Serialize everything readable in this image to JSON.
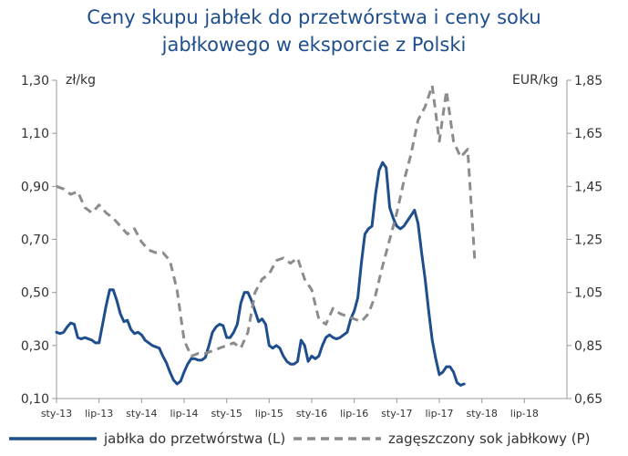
{
  "chart_data": {
    "type": "line",
    "title_lines": [
      "Ceny skupu jabłek do przetwórstwa i ceny soku",
      "jabłkowego w eksporcie z Polski"
    ],
    "left_axis_unit": "zł/kg",
    "right_axis_unit": "EUR/kg",
    "left_ylim": [
      0.1,
      1.3
    ],
    "right_ylim": [
      0.65,
      1.85
    ],
    "left_ticks": [
      "0,10",
      "0,30",
      "0,50",
      "0,70",
      "0,90",
      "1,10",
      "1,30"
    ],
    "right_ticks": [
      "0,65",
      "0,85",
      "1,05",
      "1,25",
      "1,45",
      "1,65",
      "1,85"
    ],
    "xlim": [
      0,
      72
    ],
    "x_ticks": [
      {
        "x": 0,
        "label": "sty-13"
      },
      {
        "x": 6,
        "label": "lip-13"
      },
      {
        "x": 12,
        "label": "sty-14"
      },
      {
        "x": 18,
        "label": "lip-14"
      },
      {
        "x": 24,
        "label": "sty-15"
      },
      {
        "x": 30,
        "label": "lip-15"
      },
      {
        "x": 36,
        "label": "sty-16"
      },
      {
        "x": 42,
        "label": "lip-16"
      },
      {
        "x": 48,
        "label": "sty-17"
      },
      {
        "x": 54,
        "label": "lip-17"
      },
      {
        "x": 60,
        "label": "sty-18"
      },
      {
        "x": 66,
        "label": "lip-18"
      }
    ],
    "grid": false,
    "legend_position": "bottom",
    "series": [
      {
        "name": "jabłka do przetwórstwa (L)",
        "axis": "left",
        "color": "#1f4e8c",
        "style": "solid",
        "points": [
          [
            0,
            0.35
          ],
          [
            0.5,
            0.345
          ],
          [
            1,
            0.35
          ],
          [
            1.5,
            0.37
          ],
          [
            2,
            0.385
          ],
          [
            2.5,
            0.38
          ],
          [
            3,
            0.33
          ],
          [
            3.5,
            0.325
          ],
          [
            4,
            0.33
          ],
          [
            4.5,
            0.325
          ],
          [
            5,
            0.32
          ],
          [
            5.5,
            0.31
          ],
          [
            6,
            0.31
          ],
          [
            6.5,
            0.38
          ],
          [
            7,
            0.45
          ],
          [
            7.5,
            0.51
          ],
          [
            8,
            0.51
          ],
          [
            8.5,
            0.47
          ],
          [
            9,
            0.42
          ],
          [
            9.5,
            0.39
          ],
          [
            10,
            0.395
          ],
          [
            10.5,
            0.36
          ],
          [
            11,
            0.345
          ],
          [
            11.5,
            0.35
          ],
          [
            12,
            0.34
          ],
          [
            12.5,
            0.32
          ],
          [
            13,
            0.31
          ],
          [
            13.5,
            0.3
          ],
          [
            14,
            0.295
          ],
          [
            14.5,
            0.29
          ],
          [
            15,
            0.26
          ],
          [
            15.5,
            0.235
          ],
          [
            16,
            0.2
          ],
          [
            16.5,
            0.17
          ],
          [
            17,
            0.155
          ],
          [
            17.5,
            0.165
          ],
          [
            18,
            0.2
          ],
          [
            18.5,
            0.23
          ],
          [
            19,
            0.25
          ],
          [
            19.5,
            0.25
          ],
          [
            20,
            0.245
          ],
          [
            20.5,
            0.245
          ],
          [
            21,
            0.255
          ],
          [
            21.5,
            0.3
          ],
          [
            22,
            0.35
          ],
          [
            22.5,
            0.37
          ],
          [
            23,
            0.38
          ],
          [
            23.5,
            0.375
          ],
          [
            24,
            0.33
          ],
          [
            24.5,
            0.33
          ],
          [
            25,
            0.35
          ],
          [
            25.5,
            0.38
          ],
          [
            26,
            0.46
          ],
          [
            26.5,
            0.5
          ],
          [
            27,
            0.5
          ],
          [
            27.5,
            0.47
          ],
          [
            28,
            0.43
          ],
          [
            28.5,
            0.39
          ],
          [
            29,
            0.4
          ],
          [
            29.5,
            0.38
          ],
          [
            30,
            0.3
          ],
          [
            30.5,
            0.29
          ],
          [
            31,
            0.3
          ],
          [
            31.5,
            0.29
          ],
          [
            32,
            0.26
          ],
          [
            32.5,
            0.24
          ],
          [
            33,
            0.23
          ],
          [
            33.5,
            0.23
          ],
          [
            34,
            0.24
          ],
          [
            34.5,
            0.32
          ],
          [
            35,
            0.3
          ],
          [
            35.5,
            0.24
          ],
          [
            36,
            0.26
          ],
          [
            36.5,
            0.25
          ],
          [
            37,
            0.26
          ],
          [
            37.5,
            0.3
          ],
          [
            38,
            0.33
          ],
          [
            38.5,
            0.34
          ],
          [
            39,
            0.33
          ],
          [
            39.5,
            0.325
          ],
          [
            40,
            0.33
          ],
          [
            40.5,
            0.34
          ],
          [
            41,
            0.35
          ],
          [
            41.5,
            0.4
          ],
          [
            42,
            0.43
          ],
          [
            42.5,
            0.48
          ],
          [
            43,
            0.61
          ],
          [
            43.5,
            0.72
          ],
          [
            44,
            0.74
          ],
          [
            44.5,
            0.75
          ],
          [
            45,
            0.87
          ],
          [
            45.5,
            0.96
          ],
          [
            46,
            0.99
          ],
          [
            46.5,
            0.97
          ],
          [
            47,
            0.82
          ],
          [
            47.5,
            0.78
          ],
          [
            48,
            0.75
          ],
          [
            48.5,
            0.74
          ],
          [
            49,
            0.75
          ],
          [
            49.5,
            0.77
          ],
          [
            50,
            0.79
          ],
          [
            50.5,
            0.81
          ],
          [
            51,
            0.76
          ],
          [
            51.5,
            0.65
          ],
          [
            52,
            0.55
          ],
          [
            52.5,
            0.43
          ],
          [
            53,
            0.32
          ],
          [
            53.5,
            0.25
          ],
          [
            54,
            0.19
          ],
          [
            54.5,
            0.2
          ],
          [
            55,
            0.22
          ],
          [
            55.5,
            0.22
          ],
          [
            56,
            0.2
          ],
          [
            56.5,
            0.16
          ],
          [
            57,
            0.15
          ],
          [
            57.5,
            0.155
          ]
        ]
      },
      {
        "name": "zagęszczony sok jabłkowy (P)",
        "axis": "right",
        "color": "#8c8c8c",
        "style": "dashed",
        "points": [
          [
            0,
            1.45
          ],
          [
            1,
            1.44
          ],
          [
            2,
            1.42
          ],
          [
            3,
            1.43
          ],
          [
            4,
            1.37
          ],
          [
            5,
            1.35
          ],
          [
            6,
            1.38
          ],
          [
            7,
            1.35
          ],
          [
            8,
            1.33
          ],
          [
            9,
            1.3
          ],
          [
            10,
            1.27
          ],
          [
            11,
            1.29
          ],
          [
            12,
            1.24
          ],
          [
            13,
            1.21
          ],
          [
            14,
            1.2
          ],
          [
            15,
            1.2
          ],
          [
            16,
            1.17
          ],
          [
            17,
            1.06
          ],
          [
            18,
            0.87
          ],
          [
            19,
            0.81
          ],
          [
            20,
            0.82
          ],
          [
            21,
            0.82
          ],
          [
            22,
            0.83
          ],
          [
            23,
            0.84
          ],
          [
            24,
            0.85
          ],
          [
            25,
            0.86
          ],
          [
            26,
            0.84
          ],
          [
            27,
            0.9
          ],
          [
            28,
            1.05
          ],
          [
            29,
            1.1
          ],
          [
            30,
            1.12
          ],
          [
            31,
            1.17
          ],
          [
            32,
            1.18
          ],
          [
            33,
            1.16
          ],
          [
            34,
            1.18
          ],
          [
            35,
            1.1
          ],
          [
            36,
            1.06
          ],
          [
            37,
            0.95
          ],
          [
            38,
            0.93
          ],
          [
            39,
            0.99
          ],
          [
            40,
            0.97
          ],
          [
            41,
            0.96
          ],
          [
            42,
            0.95
          ],
          [
            43,
            0.94
          ],
          [
            44,
            0.97
          ],
          [
            45,
            1.04
          ],
          [
            46,
            1.15
          ],
          [
            47,
            1.25
          ],
          [
            48,
            1.35
          ],
          [
            49,
            1.47
          ],
          [
            50,
            1.57
          ],
          [
            51,
            1.7
          ],
          [
            52,
            1.75
          ],
          [
            53,
            1.83
          ],
          [
            54,
            1.62
          ],
          [
            55,
            1.81
          ],
          [
            56,
            1.62
          ],
          [
            57,
            1.56
          ],
          [
            58,
            1.59
          ],
          [
            59,
            1.17
          ]
        ]
      }
    ]
  }
}
